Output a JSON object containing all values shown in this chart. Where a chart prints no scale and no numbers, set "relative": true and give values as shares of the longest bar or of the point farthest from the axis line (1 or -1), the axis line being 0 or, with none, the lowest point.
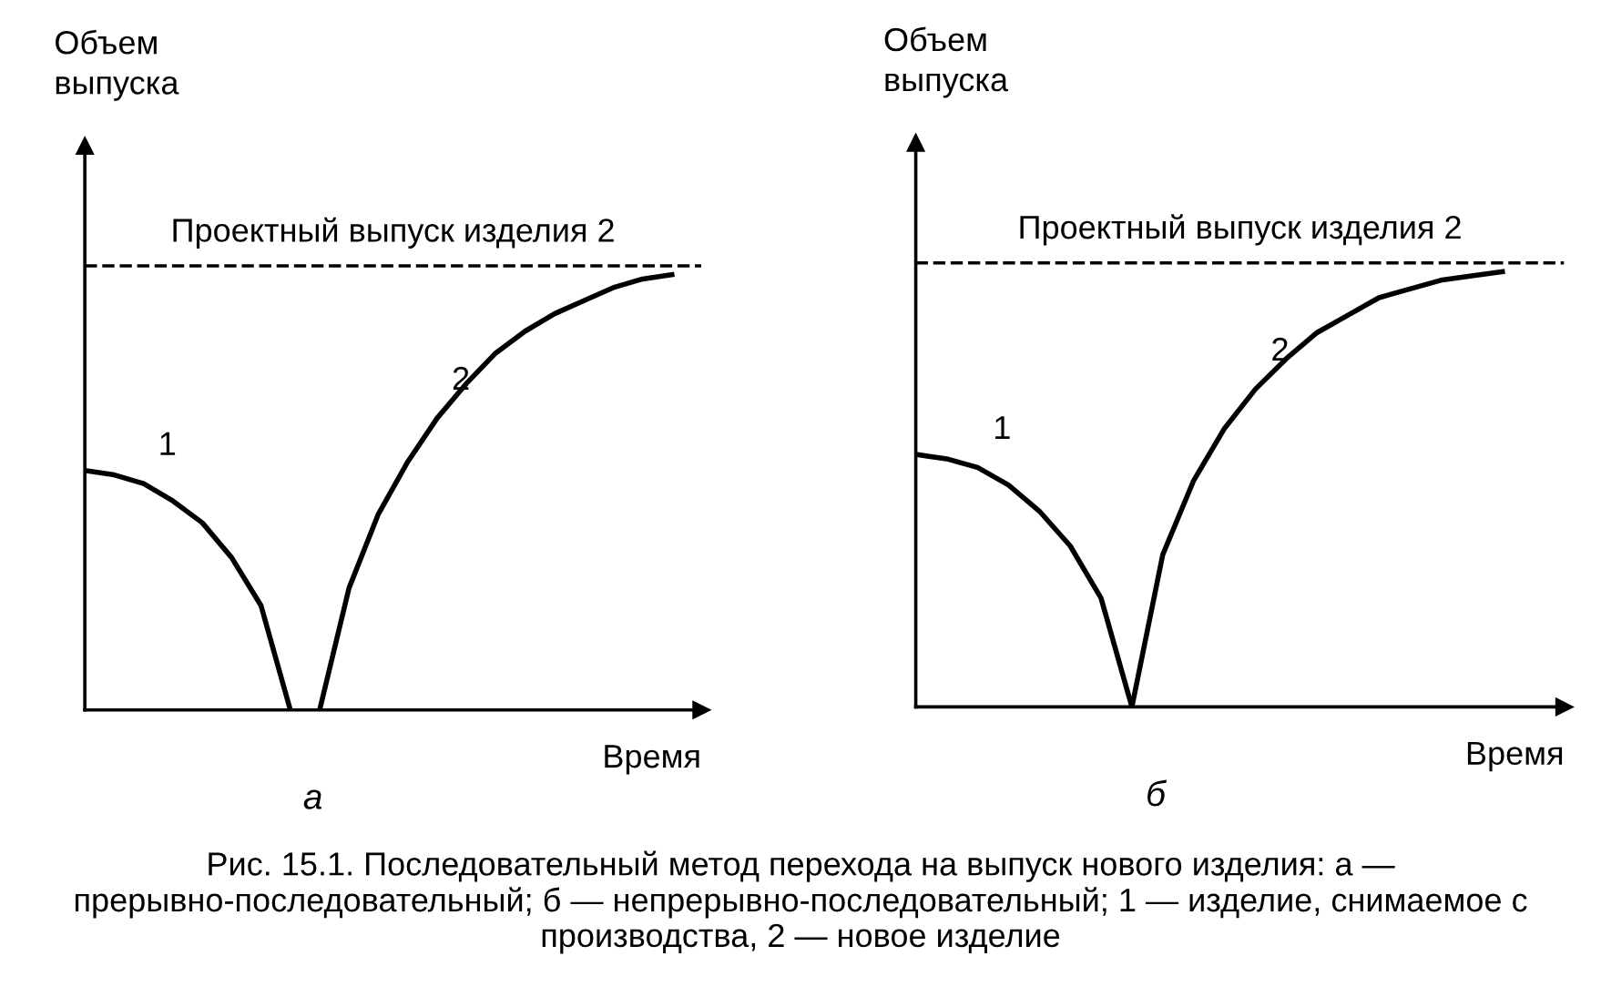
{
  "chart_data": [
    {
      "type": "line",
      "relative": true,
      "xlabel": "Время",
      "ylabel": "Объем\nвыпуска",
      "subtitle": "а",
      "legend": false,
      "tick_labels": false,
      "line_style": "solid",
      "marker": "none",
      "categories": [
        null,
        null,
        null,
        null,
        null,
        null,
        null,
        null,
        null,
        null,
        null,
        null,
        null,
        null,
        null,
        null,
        null,
        null,
        null,
        null,
        null,
        null
      ],
      "series": [
        {
          "name": "1",
          "color": "#000000",
          "values": [
            0.55,
            0.54,
            0.52,
            0.48,
            0.43,
            0.35,
            0.24,
            0,
            null,
            null,
            null,
            null,
            null,
            null,
            null,
            null,
            null,
            null,
            null,
            null,
            null,
            null
          ]
        },
        {
          "name": "2",
          "color": "#000000",
          "values": [
            null,
            null,
            null,
            null,
            null,
            null,
            null,
            null,
            0,
            0.28,
            0.45,
            0.57,
            0.67,
            0.75,
            0.82,
            0.87,
            0.91,
            0.94,
            0.97,
            0.99,
            1,
            null
          ]
        }
      ],
      "ref_lines": [
        {
          "axis": "y",
          "value": 1.02,
          "label": "Проектный выпуск изделия 2",
          "color": "#000000",
          "line_style": "dashed"
        }
      ],
      "annotations": [
        "Рис. 15.1. Последовательный метод перехода на выпуск нового изделия: а — прерывно-последовательный; б — непрерывно-последовательный; 1 — изделие, снимаемое с производства, 2 — новое изделие"
      ]
    },
    {
      "type": "line",
      "relative": true,
      "xlabel": "Время",
      "ylabel": "Объем\nвыпуска",
      "subtitle": "б",
      "legend": false,
      "tick_labels": false,
      "line_style": "solid",
      "marker": "none",
      "categories": [
        null,
        null,
        null,
        null,
        null,
        null,
        null,
        null,
        null,
        null,
        null,
        null,
        null,
        null,
        null,
        null,
        null,
        null,
        null,
        null,
        null,
        null
      ],
      "series": [
        {
          "name": "1",
          "color": "#000000",
          "values": [
            0.58,
            0.57,
            0.55,
            0.51,
            0.45,
            0.37,
            0.25,
            0,
            null,
            null,
            null,
            null,
            null,
            null,
            null,
            null,
            null,
            null,
            null,
            null,
            null,
            null
          ]
        },
        {
          "name": "2",
          "color": "#000000",
          "values": [
            null,
            null,
            null,
            null,
            null,
            null,
            null,
            0,
            0.35,
            0.52,
            0.64,
            0.73,
            0.8,
            0.86,
            0.9,
            0.94,
            0.96,
            0.98,
            0.99,
            1,
            null,
            null
          ]
        }
      ],
      "ref_lines": [
        {
          "axis": "y",
          "value": 1.02,
          "label": "Проектный выпуск изделия 2",
          "color": "#000000",
          "line_style": "dashed"
        }
      ]
    }
  ]
}
